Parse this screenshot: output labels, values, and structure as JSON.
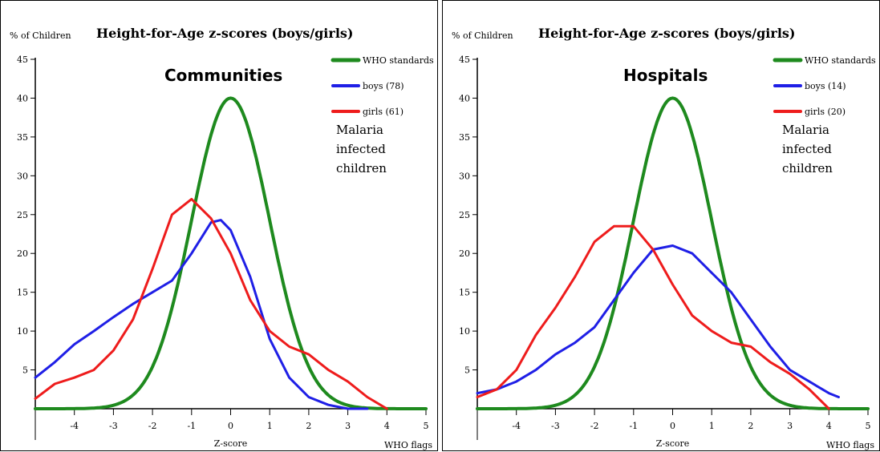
{
  "colors": {
    "who": "#1e8a1e",
    "boys": "#1f1fe6",
    "girls": "#ee1c1c"
  },
  "chart_data": [
    {
      "type": "line",
      "title": "Height-for-Age z-scores (boys/girls)",
      "ylabel": "% of Children",
      "xlabel": "Z-score",
      "xflag_label": "WHO flags",
      "panel_label": "Communities",
      "note": [
        "Malaria",
        "infected",
        "children"
      ],
      "xlim": [
        -5,
        5
      ],
      "ylim": [
        0,
        45
      ],
      "xticks": [
        -4,
        -3,
        -2,
        -1,
        0,
        1,
        2,
        3,
        4,
        5
      ],
      "yticks": [
        5,
        10,
        15,
        20,
        25,
        30,
        35,
        40,
        45
      ],
      "grid": false,
      "legend": "top-right",
      "series": [
        {
          "name": "WHO standards",
          "color_key": "who",
          "normal": true
        },
        {
          "name": "boys (78)",
          "color_key": "boys",
          "x": [
            -5,
            -4.5,
            -4,
            -3.5,
            -3,
            -2.5,
            -2,
            -1.5,
            -1,
            -0.5,
            -0.25,
            0,
            0.5,
            1,
            1.5,
            2,
            2.5,
            3,
            3.5
          ],
          "y": [
            4,
            6,
            8.3,
            10,
            11.8,
            13.5,
            15,
            16.5,
            20,
            24,
            24.3,
            23,
            17,
            9,
            4,
            1.5,
            0.5,
            0,
            0
          ]
        },
        {
          "name": "girls (61)",
          "color_key": "girls",
          "x": [
            -5,
            -4.5,
            -4,
            -3.5,
            -3,
            -2.5,
            -2,
            -1.5,
            -1,
            -0.5,
            0,
            0.5,
            1,
            1.5,
            2,
            2.5,
            3,
            3.5,
            4
          ],
          "y": [
            1.3,
            3.2,
            4,
            5,
            7.5,
            11.5,
            18,
            25,
            27,
            24.5,
            20,
            14,
            10,
            8,
            7,
            5,
            3.5,
            1.5,
            0
          ]
        }
      ]
    },
    {
      "type": "line",
      "title": "Height-for-Age z-scores (boys/girls)",
      "ylabel": "% of Children",
      "xlabel": "Z-score",
      "xflag_label": "WHO flags",
      "panel_label": "Hospitals",
      "note": [
        "Malaria",
        "infected",
        "children"
      ],
      "xlim": [
        -5,
        5
      ],
      "ylim": [
        0,
        45
      ],
      "xticks": [
        -4,
        -3,
        -2,
        -1,
        0,
        1,
        2,
        3,
        4,
        5
      ],
      "yticks": [
        5,
        10,
        15,
        20,
        25,
        30,
        35,
        40,
        45
      ],
      "grid": false,
      "legend": "top-right",
      "series": [
        {
          "name": "WHO standards",
          "color_key": "who",
          "normal": true
        },
        {
          "name": "boys (14)",
          "color_key": "boys",
          "x": [
            -5,
            -4.5,
            -4,
            -3.5,
            -3,
            -2.5,
            -2,
            -1.5,
            -1,
            -0.5,
            0,
            0.5,
            1,
            1.5,
            2,
            2.5,
            3,
            3.5,
            4,
            4.25
          ],
          "y": [
            2,
            2.5,
            3.5,
            5,
            7,
            8.5,
            10.5,
            14,
            17.5,
            20.5,
            21,
            20,
            17.5,
            15,
            11.5,
            8,
            5,
            3.5,
            2,
            1.5
          ]
        },
        {
          "name": "girls (20)",
          "color_key": "girls",
          "x": [
            -5,
            -4.5,
            -4,
            -3.5,
            -3,
            -2.5,
            -2,
            -1.5,
            -1,
            -0.5,
            0,
            0.5,
            1,
            1.5,
            2,
            2.5,
            3,
            3.5,
            4
          ],
          "y": [
            1.5,
            2.5,
            5,
            9.5,
            13,
            17,
            21.5,
            23.5,
            23.5,
            20.5,
            16,
            12,
            10,
            8.5,
            8,
            6,
            4.5,
            2.5,
            0
          ]
        }
      ]
    }
  ]
}
